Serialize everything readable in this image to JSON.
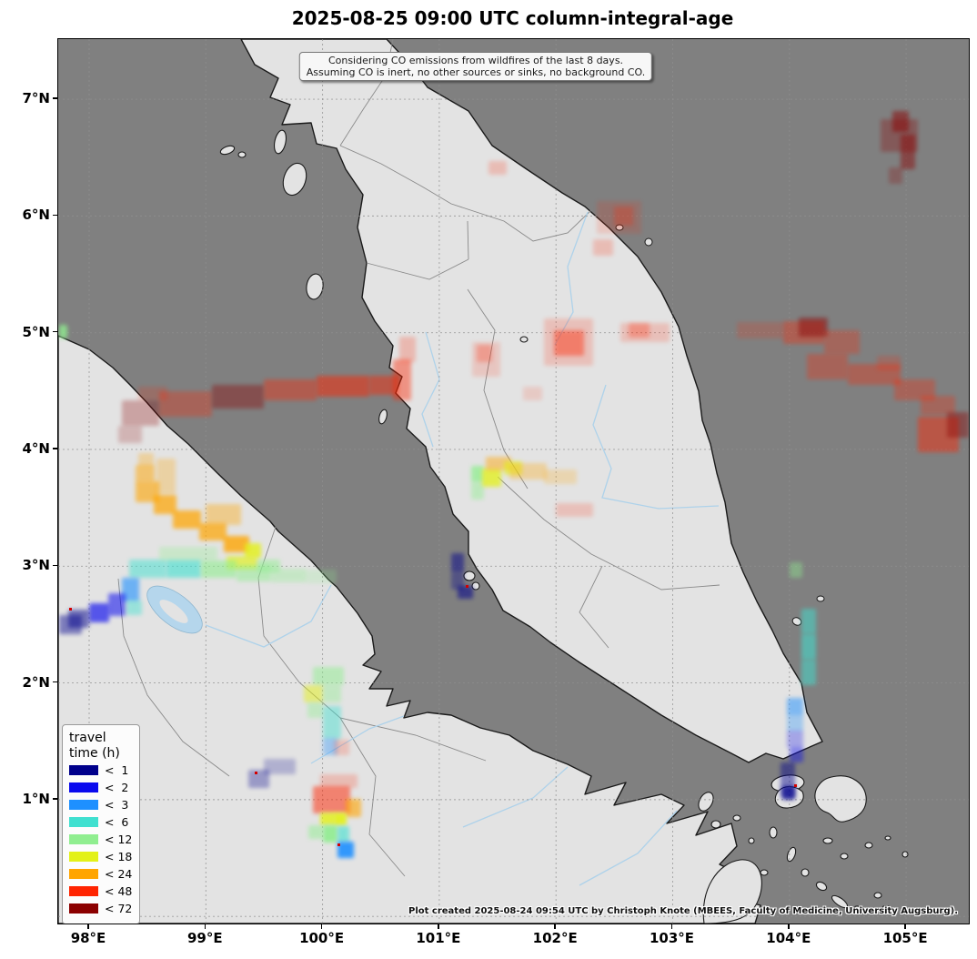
{
  "title": "2025-08-25 09:00 UTC column-integral-age",
  "annotation": {
    "line1": "Considering CO emissions from wildfires of the last 8 days.",
    "line2": "Assuming CO is inert, no other sources or sinks, no background CO."
  },
  "credit": "Plot created 2025-08-24 09:54 UTC by Christoph Knote (MBEES, Faculty of Medicine, University Augsburg).",
  "axes": {
    "x_ticks": [
      {
        "label": "98°E",
        "lon": 98
      },
      {
        "label": "99°E",
        "lon": 99
      },
      {
        "label": "100°E",
        "lon": 100
      },
      {
        "label": "101°E",
        "lon": 101
      },
      {
        "label": "102°E",
        "lon": 102
      },
      {
        "label": "103°E",
        "lon": 103
      },
      {
        "label": "104°E",
        "lon": 104
      },
      {
        "label": "105°E",
        "lon": 105
      }
    ],
    "y_ticks": [
      {
        "label": "7°N",
        "lat": 7
      },
      {
        "label": "6°N",
        "lat": 6
      },
      {
        "label": "5°N",
        "lat": 5
      },
      {
        "label": "4°N",
        "lat": 4
      },
      {
        "label": "3°N",
        "lat": 3
      },
      {
        "label": "2°N",
        "lat": 2
      },
      {
        "label": "1°N",
        "lat": 1
      }
    ],
    "grid_lons": [
      98,
      99,
      100,
      101,
      102,
      103,
      104,
      105
    ],
    "grid_lats": [
      0,
      1,
      2,
      3,
      4,
      5,
      6,
      7
    ],
    "lon_min": 97.735,
    "lon_max": 105.54,
    "lat_min": -0.06,
    "lat_max": 7.515
  },
  "legend": {
    "title_line1": "travel",
    "title_line2": "time (h)",
    "entries": [
      {
        "label": "<  1",
        "key": "lt1",
        "color": "#00008b"
      },
      {
        "label": "<  2",
        "key": "lt2",
        "color": "#0a0aee"
      },
      {
        "label": "<  3",
        "key": "lt3",
        "color": "#1e90ff"
      },
      {
        "label": "<  6",
        "key": "lt6",
        "color": "#40e0d0"
      },
      {
        "label": "< 12",
        "key": "lt12",
        "color": "#90ee90"
      },
      {
        "label": "< 18",
        "key": "lt18",
        "color": "#e3f118"
      },
      {
        "label": "< 24",
        "key": "lt24",
        "color": "#ffa500"
      },
      {
        "label": "< 48",
        "key": "lt48",
        "color": "#ff2400"
      },
      {
        "label": "< 72",
        "key": "lt72",
        "color": "#8b0000"
      }
    ]
  },
  "colors": {
    "sea": "#808080",
    "land": "#e3e3e3",
    "coast": "#1a1a1a",
    "border": "#8a8a8a",
    "river": "#aed2ea",
    "grid": "#909090",
    "marker": "#d40000"
  },
  "chart_data": {
    "type": "heatmap",
    "description": "CO plume travel-time age cells [lon_west, lat_south, width_deg, height_deg, class_key, opacity]",
    "patches": [
      [
        98.28,
        4.2,
        0.32,
        0.22,
        "lt72",
        0.28
      ],
      [
        98.25,
        4.05,
        0.2,
        0.15,
        "lt72",
        0.2
      ],
      [
        98.6,
        4.28,
        0.45,
        0.22,
        "lt48",
        0.3
      ],
      [
        99.05,
        4.35,
        0.45,
        0.2,
        "lt72",
        0.38
      ],
      [
        99.5,
        4.42,
        0.45,
        0.18,
        "lt48",
        0.38
      ],
      [
        99.95,
        4.45,
        0.45,
        0.18,
        "lt48",
        0.5
      ],
      [
        100.4,
        4.47,
        0.25,
        0.16,
        "lt48",
        0.45
      ],
      [
        100.6,
        4.42,
        0.16,
        0.35,
        "lt48",
        0.42
      ],
      [
        100.66,
        4.75,
        0.14,
        0.22,
        "lt48",
        0.22
      ],
      [
        98.42,
        4.42,
        0.25,
        0.12,
        "lt48",
        0.18
      ],
      [
        101.9,
        4.72,
        0.42,
        0.4,
        "lt48",
        0.18
      ],
      [
        101.98,
        4.8,
        0.26,
        0.22,
        "lt48",
        0.42
      ],
      [
        102.55,
        4.92,
        0.42,
        0.16,
        "lt48",
        0.18
      ],
      [
        102.62,
        4.96,
        0.18,
        0.12,
        "lt48",
        0.28
      ],
      [
        101.28,
        4.62,
        0.24,
        0.3,
        "lt48",
        0.15
      ],
      [
        101.32,
        4.75,
        0.13,
        0.15,
        "lt48",
        0.25
      ],
      [
        101.72,
        4.42,
        0.16,
        0.12,
        "lt48",
        0.13
      ],
      [
        102.35,
        5.85,
        0.38,
        0.28,
        "lt48",
        0.15
      ],
      [
        102.5,
        5.92,
        0.16,
        0.16,
        "lt48",
        0.25
      ],
      [
        101.42,
        6.35,
        0.16,
        0.12,
        "lt48",
        0.2
      ],
      [
        102.32,
        5.66,
        0.17,
        0.14,
        "lt48",
        0.2
      ],
      [
        104.78,
        6.55,
        0.32,
        0.28,
        "lt72",
        0.3
      ],
      [
        104.88,
        6.72,
        0.14,
        0.18,
        "lt72",
        0.5
      ],
      [
        104.95,
        6.4,
        0.13,
        0.3,
        "lt72",
        0.45
      ],
      [
        104.85,
        6.28,
        0.12,
        0.14,
        "lt72",
        0.25
      ],
      [
        103.55,
        4.95,
        0.4,
        0.14,
        "lt48",
        0.18
      ],
      [
        103.95,
        4.9,
        0.35,
        0.2,
        "lt48",
        0.35
      ],
      [
        104.08,
        4.97,
        0.25,
        0.16,
        "lt72",
        0.45
      ],
      [
        104.3,
        4.82,
        0.3,
        0.2,
        "lt48",
        0.28
      ],
      [
        104.15,
        4.6,
        0.35,
        0.22,
        "lt48",
        0.3
      ],
      [
        104.5,
        4.55,
        0.45,
        0.18,
        "lt48",
        0.32
      ],
      [
        104.9,
        4.42,
        0.35,
        0.18,
        "lt48",
        0.3
      ],
      [
        105.12,
        4.3,
        0.3,
        0.16,
        "lt48",
        0.28
      ],
      [
        105.1,
        3.98,
        0.35,
        0.3,
        "lt48",
        0.45
      ],
      [
        105.35,
        4.1,
        0.19,
        0.22,
        "lt72",
        0.4
      ],
      [
        104.75,
        4.68,
        0.2,
        0.12,
        "lt48",
        0.2
      ],
      [
        101.27,
        3.72,
        0.11,
        0.14,
        "lt12",
        0.75
      ],
      [
        101.27,
        3.57,
        0.11,
        0.15,
        "lt12",
        0.45
      ],
      [
        101.37,
        3.68,
        0.16,
        0.16,
        "lt18",
        0.75
      ],
      [
        101.4,
        3.82,
        0.22,
        0.12,
        "lt24",
        0.45
      ],
      [
        101.55,
        3.78,
        0.16,
        0.12,
        "lt18",
        0.6
      ],
      [
        101.6,
        3.74,
        0.32,
        0.14,
        "lt24",
        0.3
      ],
      [
        101.9,
        3.7,
        0.28,
        0.13,
        "lt24",
        0.22
      ],
      [
        102.0,
        3.42,
        0.32,
        0.12,
        "lt48",
        0.18
      ],
      [
        101.1,
        2.95,
        0.11,
        0.16,
        "lt1",
        0.5
      ],
      [
        101.1,
        2.8,
        0.11,
        0.15,
        "lt1",
        0.35
      ],
      [
        101.16,
        2.72,
        0.13,
        0.11,
        "lt1",
        0.55
      ],
      [
        98.42,
        3.85,
        0.13,
        0.12,
        "lt24",
        0.3
      ],
      [
        98.4,
        3.72,
        0.16,
        0.15,
        "lt24",
        0.5
      ],
      [
        98.4,
        3.55,
        0.2,
        0.18,
        "lt24",
        0.6
      ],
      [
        98.55,
        3.45,
        0.2,
        0.16,
        "lt24",
        0.7
      ],
      [
        98.72,
        3.32,
        0.24,
        0.16,
        "lt24",
        0.72
      ],
      [
        98.94,
        3.22,
        0.24,
        0.15,
        "lt24",
        0.7
      ],
      [
        99.15,
        3.12,
        0.22,
        0.14,
        "lt24",
        0.78
      ],
      [
        99.33,
        3.07,
        0.14,
        0.13,
        "lt18",
        0.8
      ],
      [
        98.58,
        3.62,
        0.16,
        0.3,
        "lt24",
        0.28
      ],
      [
        99.0,
        3.35,
        0.3,
        0.18,
        "lt24",
        0.38
      ],
      [
        99.18,
        2.97,
        0.26,
        0.12,
        "lt18",
        0.65
      ],
      [
        99.44,
        2.95,
        0.2,
        0.11,
        "lt12",
        0.5
      ],
      [
        98.34,
        2.9,
        0.32,
        0.16,
        "lt6",
        0.5
      ],
      [
        98.66,
        2.9,
        0.3,
        0.16,
        "lt6",
        0.6
      ],
      [
        98.96,
        2.9,
        0.3,
        0.15,
        "lt12",
        0.6
      ],
      [
        99.26,
        2.87,
        0.3,
        0.14,
        "lt12",
        0.5
      ],
      [
        99.56,
        2.86,
        0.3,
        0.12,
        "lt12",
        0.35
      ],
      [
        99.86,
        2.85,
        0.26,
        0.12,
        "lt12",
        0.22
      ],
      [
        98.6,
        3.05,
        0.5,
        0.12,
        "lt12",
        0.3
      ],
      [
        98.28,
        2.7,
        0.15,
        0.2,
        "lt3",
        0.6
      ],
      [
        98.16,
        2.57,
        0.15,
        0.2,
        "lt2",
        0.55
      ],
      [
        98.0,
        2.52,
        0.17,
        0.16,
        "lt2",
        0.65
      ],
      [
        97.82,
        2.47,
        0.18,
        0.16,
        "lt1",
        0.5
      ],
      [
        97.74,
        2.42,
        0.2,
        0.16,
        "lt1",
        0.45
      ],
      [
        98.32,
        2.58,
        0.13,
        0.13,
        "lt6",
        0.45
      ],
      [
        99.92,
        1.98,
        0.26,
        0.16,
        "lt12",
        0.5
      ],
      [
        99.84,
        1.83,
        0.16,
        0.15,
        "lt18",
        0.5
      ],
      [
        100.0,
        1.83,
        0.16,
        0.15,
        "lt12",
        0.4
      ],
      [
        99.87,
        1.7,
        0.13,
        0.13,
        "lt12",
        0.4
      ],
      [
        100.0,
        1.52,
        0.16,
        0.28,
        "lt6",
        0.45
      ],
      [
        100.0,
        1.38,
        0.13,
        0.15,
        "lt3",
        0.35
      ],
      [
        100.1,
        1.38,
        0.13,
        0.13,
        "lt48",
        0.18
      ],
      [
        99.5,
        1.22,
        0.27,
        0.13,
        "lt1",
        0.22
      ],
      [
        99.36,
        1.1,
        0.18,
        0.16,
        "lt1",
        0.32
      ],
      [
        99.98,
        1.1,
        0.32,
        0.12,
        "lt48",
        0.2
      ],
      [
        99.92,
        0.88,
        0.32,
        0.24,
        "lt48",
        0.5
      ],
      [
        100.2,
        0.85,
        0.13,
        0.16,
        "lt24",
        0.6
      ],
      [
        99.98,
        0.78,
        0.13,
        0.11,
        "lt18",
        0.8
      ],
      [
        100.1,
        0.78,
        0.11,
        0.11,
        "lt18",
        0.9
      ],
      [
        100.0,
        0.63,
        0.13,
        0.15,
        "lt12",
        0.9
      ],
      [
        99.88,
        0.66,
        0.12,
        0.12,
        "lt12",
        0.5
      ],
      [
        100.13,
        0.63,
        0.1,
        0.14,
        "lt6",
        0.6
      ],
      [
        100.13,
        0.5,
        0.14,
        0.14,
        "lt3",
        0.9
      ],
      [
        104.0,
        2.9,
        0.11,
        0.13,
        "lt12",
        0.4
      ],
      [
        104.1,
        2.42,
        0.13,
        0.22,
        "lt6",
        0.5
      ],
      [
        104.1,
        2.2,
        0.13,
        0.22,
        "lt6",
        0.55
      ],
      [
        104.1,
        1.98,
        0.13,
        0.22,
        "lt6",
        0.5
      ],
      [
        103.98,
        1.72,
        0.14,
        0.15,
        "lt3",
        0.5
      ],
      [
        103.98,
        1.58,
        0.14,
        0.15,
        "lt3",
        0.32
      ],
      [
        103.98,
        1.44,
        0.14,
        0.15,
        "lt2",
        0.28
      ],
      [
        104.0,
        1.32,
        0.12,
        0.13,
        "lt2",
        0.42
      ],
      [
        103.92,
        1.02,
        0.13,
        0.3,
        "lt1",
        0.45
      ],
      [
        103.94,
        1.0,
        0.11,
        0.12,
        "lt1",
        0.7
      ],
      [
        97.74,
        4.95,
        0.07,
        0.12,
        "lt12",
        0.8
      ]
    ],
    "source_markers": [
      [
        97.84,
        2.63
      ],
      [
        99.43,
        1.23
      ],
      [
        100.14,
        0.61
      ],
      [
        101.24,
        2.83
      ],
      [
        104.05,
        1.12
      ]
    ]
  }
}
